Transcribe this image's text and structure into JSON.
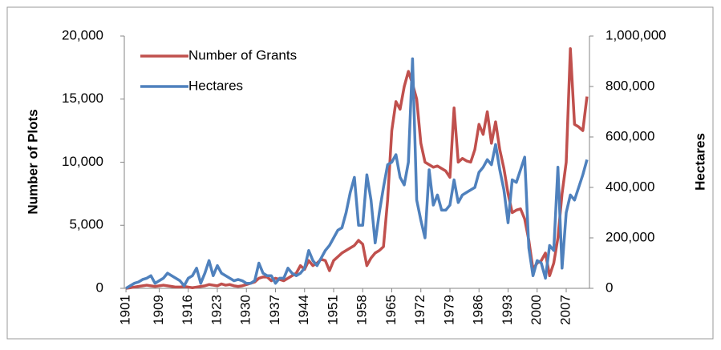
{
  "chart_data": {
    "type": "line",
    "y_label": "Number of Plots",
    "y2_label": "Hectares",
    "x": [
      1901,
      1902,
      1903,
      1904,
      1905,
      1906,
      1907,
      1908,
      1909,
      1910,
      1911,
      1912,
      1913,
      1914,
      1915,
      1916,
      1917,
      1918,
      1919,
      1920,
      1921,
      1922,
      1923,
      1924,
      1925,
      1926,
      1927,
      1928,
      1929,
      1930,
      1931,
      1932,
      1933,
      1934,
      1935,
      1936,
      1937,
      1938,
      1939,
      1940,
      1941,
      1942,
      1943,
      1944,
      1945,
      1946,
      1947,
      1948,
      1949,
      1950,
      1951,
      1952,
      1953,
      1954,
      1955,
      1956,
      1957,
      1958,
      1959,
      1960,
      1961,
      1962,
      1963,
      1964,
      1965,
      1966,
      1967,
      1968,
      1969,
      1970,
      1971,
      1972,
      1973,
      1974,
      1975,
      1976,
      1977,
      1978,
      1979,
      1980,
      1981,
      1982,
      1983,
      1984,
      1985,
      1986,
      1987,
      1988,
      1989,
      1990,
      1991,
      1992,
      1993,
      1994,
      1995,
      1996,
      1997,
      1998,
      1999,
      2000,
      2001,
      2002,
      2003,
      2004,
      2005,
      2006,
      2007,
      2008,
      2009,
      2010,
      2011,
      2012
    ],
    "series": [
      {
        "name": "Number of Grants",
        "color": "#c0504d",
        "values": [
          0,
          50,
          100,
          150,
          200,
          250,
          200,
          150,
          200,
          250,
          200,
          150,
          100,
          100,
          150,
          100,
          50,
          100,
          150,
          200,
          300,
          250,
          200,
          350,
          250,
          300,
          200,
          150,
          200,
          300,
          400,
          500,
          800,
          900,
          900,
          600,
          800,
          700,
          600,
          800,
          1000,
          1200,
          1800,
          1500,
          2200,
          1800,
          2000,
          2300,
          2200,
          1400,
          2200,
          2500,
          2800,
          3000,
          3200,
          3400,
          3800,
          3500,
          1800,
          2400,
          2800,
          3000,
          3300,
          7000,
          12500,
          14800,
          14200,
          16000,
          17200,
          16200,
          15000,
          11500,
          10000,
          9800,
          9600,
          9700,
          9500,
          9300,
          8800,
          14300,
          10000,
          10300,
          10100,
          10000,
          11000,
          13000,
          12200,
          14000,
          11500,
          13200,
          11000,
          9500,
          7500,
          6000,
          6200,
          6300,
          5500,
          3800,
          1500,
          2000,
          2200,
          2800,
          1000,
          2000,
          4000,
          7500,
          10000,
          19000,
          13000,
          12800,
          12500,
          15200
        ]
      },
      {
        "name": "Hectares",
        "color": "#4f81bd",
        "axis": "y2",
        "values": [
          0,
          10000,
          20000,
          25000,
          35000,
          40000,
          50000,
          20000,
          30000,
          40000,
          60000,
          50000,
          40000,
          30000,
          10000,
          40000,
          50000,
          80000,
          20000,
          60000,
          110000,
          50000,
          90000,
          60000,
          50000,
          40000,
          30000,
          35000,
          30000,
          20000,
          20000,
          30000,
          100000,
          60000,
          50000,
          50000,
          20000,
          40000,
          40000,
          80000,
          60000,
          50000,
          60000,
          80000,
          150000,
          110000,
          90000,
          120000,
          150000,
          170000,
          200000,
          230000,
          240000,
          300000,
          380000,
          440000,
          250000,
          250000,
          450000,
          350000,
          180000,
          300000,
          400000,
          490000,
          500000,
          530000,
          440000,
          410000,
          500000,
          910000,
          350000,
          270000,
          200000,
          470000,
          330000,
          370000,
          310000,
          310000,
          330000,
          430000,
          340000,
          370000,
          380000,
          390000,
          400000,
          460000,
          480000,
          510000,
          490000,
          570000,
          470000,
          390000,
          260000,
          430000,
          420000,
          470000,
          520000,
          160000,
          50000,
          110000,
          100000,
          40000,
          170000,
          150000,
          480000,
          80000,
          300000,
          370000,
          350000,
          400000,
          450000,
          510000
        ]
      }
    ],
    "xlim": [
      1900.6,
      2012.6
    ],
    "xticks": [
      1901,
      1909,
      1916,
      1923,
      1930,
      1937,
      1944,
      1951,
      1958,
      1965,
      1972,
      1979,
      1986,
      1993,
      2000,
      2007
    ],
    "ylim": [
      0,
      20000
    ],
    "yticks": [
      0,
      {
        "value": 5000,
        "label": "5,000"
      },
      {
        "value": 10000,
        "label": "10,000"
      },
      {
        "value": 15000,
        "label": "15,000"
      },
      {
        "value": 20000,
        "label": "20,000"
      }
    ],
    "y2lim": [
      0,
      1000000
    ],
    "y2ticks": [
      0,
      {
        "value": 200000,
        "label": "200,000"
      },
      {
        "value": 400000,
        "label": "400,000"
      },
      {
        "value": 600000,
        "label": "600,000"
      },
      {
        "value": 800000,
        "label": "800,000"
      },
      {
        "value": 1000000,
        "label": "1,000,000"
      }
    ],
    "legend": "top-left"
  }
}
